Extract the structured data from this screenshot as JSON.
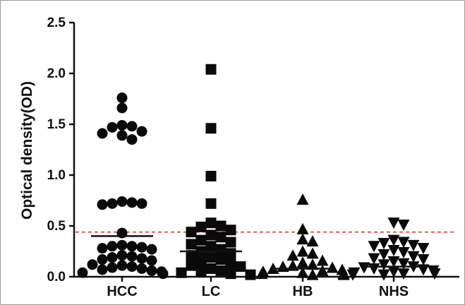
{
  "chart_data": {
    "type": "scatter",
    "title": "",
    "xlabel": "",
    "ylabel": "Optical density(OD)",
    "ylim": [
      0,
      2.5
    ],
    "yticks": [
      "0.0",
      "0.5",
      "1.0",
      "1.5",
      "2.0",
      "2.5"
    ],
    "categories": [
      "HCC",
      "LC",
      "HB",
      "NHS"
    ],
    "cutoff_line": {
      "value": 0.44,
      "color": "#e03a2e",
      "style": "dashed"
    },
    "grid": false,
    "series": [
      {
        "category": "HCC",
        "marker": "circle",
        "mean": 0.4,
        "values": [
          1.76,
          1.66,
          1.49,
          1.47,
          1.43,
          1.41,
          1.39,
          1.35,
          1.48,
          0.74,
          0.73,
          0.72,
          0.71,
          0.72,
          0.43,
          0.31,
          0.3,
          0.29,
          0.28,
          0.27,
          0.3,
          0.21,
          0.2,
          0.19,
          0.18,
          0.17,
          0.16,
          0.12,
          0.11,
          0.1,
          0.09,
          0.08,
          0.07,
          0.06,
          0.05,
          0.04,
          0.03
        ]
      },
      {
        "category": "LC",
        "marker": "square",
        "mean": 0.25,
        "values": [
          2.04,
          1.46,
          0.99,
          0.72,
          0.53,
          0.5,
          0.49,
          0.46,
          0.44,
          0.41,
          0.39,
          0.36,
          0.34,
          0.32,
          0.3,
          0.27,
          0.25,
          0.23,
          0.21,
          0.19,
          0.17,
          0.15,
          0.13,
          0.11,
          0.1,
          0.08,
          0.06,
          0.05,
          0.04,
          0.03,
          0.02
        ]
      },
      {
        "category": "HB",
        "marker": "triangle-up",
        "mean": 0.08,
        "values": [
          0.76,
          0.47,
          0.37,
          0.35,
          0.25,
          0.23,
          0.21,
          0.16,
          0.14,
          0.12,
          0.11,
          0.1,
          0.09,
          0.08,
          0.07,
          0.06,
          0.05,
          0.04,
          0.03,
          0.03,
          0.02,
          0.02
        ]
      },
      {
        "category": "NHS",
        "marker": "triangle-down",
        "mean": 0.1,
        "values": [
          0.53,
          0.51,
          0.36,
          0.34,
          0.33,
          0.31,
          0.3,
          0.28,
          0.26,
          0.24,
          0.22,
          0.2,
          0.18,
          0.17,
          0.15,
          0.13,
          0.12,
          0.1,
          0.09,
          0.08,
          0.07,
          0.06,
          0.05,
          0.04,
          0.03,
          0.03,
          0.02,
          0.02
        ]
      }
    ],
    "colors": {
      "marker": "#0a0a0a",
      "axis": "#111111",
      "cutoff": "#e03a2e"
    }
  }
}
